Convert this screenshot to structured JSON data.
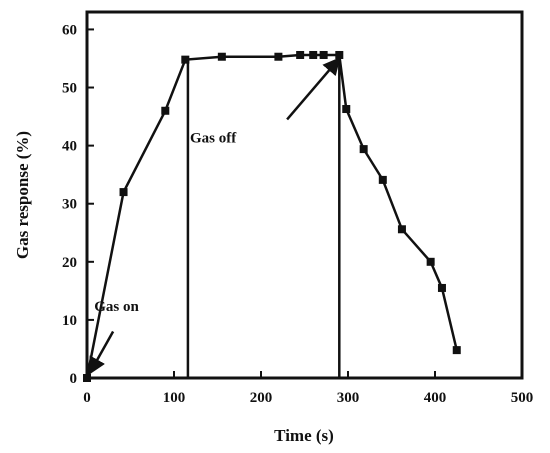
{
  "chart_data": {
    "type": "line",
    "xlabel": "Time (s)",
    "ylabel": "Gas response (%)",
    "xlim": [
      0,
      500
    ],
    "ylim": [
      0,
      63
    ],
    "xticks": [
      0,
      100,
      200,
      300,
      400,
      500
    ],
    "yticks": [
      0,
      10,
      20,
      30,
      40,
      50,
      60
    ],
    "grid": false,
    "series": [
      {
        "color": "#111111",
        "marker": "square",
        "x": [
          0,
          42,
          90,
          113,
          155,
          220,
          245,
          260,
          272,
          290,
          298,
          318,
          340,
          362,
          395,
          408,
          425
        ],
        "y": [
          0,
          32,
          46,
          54.8,
          55.3,
          55.3,
          55.6,
          55.6,
          55.6,
          55.6,
          46.3,
          39.4,
          34.1,
          25.6,
          20,
          15.5,
          4.8
        ]
      }
    ],
    "vlines": [
      116,
      290
    ],
    "annotations": [
      {
        "text": "Gas on",
        "x": 34,
        "y": 11.5,
        "arrow_to": [
          3,
          0.8
        ],
        "arrow_from": [
          30,
          8
        ]
      },
      {
        "text": "Gas off",
        "x": 145,
        "y": 40.5,
        "arrow_to": [
          290,
          55
        ],
        "arrow_from": [
          230,
          44.5
        ]
      }
    ]
  }
}
